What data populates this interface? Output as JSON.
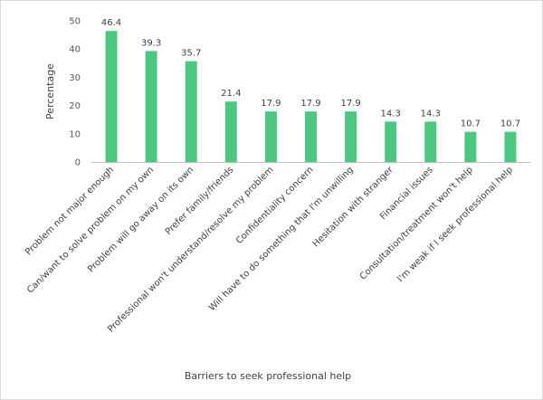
{
  "chart_data": {
    "type": "bar",
    "title": "",
    "xlabel": "Barriers to seek professional help",
    "ylabel": "Percentage",
    "ylim": [
      0,
      50
    ],
    "yticks": [
      0,
      10,
      20,
      30,
      40,
      50
    ],
    "grid": false,
    "legend": "none",
    "bar_color": "#4CC77F",
    "categories": [
      "Problem not major enough",
      "Can/want to solve problem on my own",
      "Problem will go away on its own",
      "Prefer family/friends",
      "Professional won't understand/resolve my problem",
      "Confidentiality concern",
      "Will have to do something that I'm unwilling",
      "Hesitation with stranger",
      "Financial issues",
      "Consultation/treatment won't help",
      "I'm weak if I seek professional help"
    ],
    "values": [
      46.4,
      39.3,
      35.7,
      21.4,
      17.9,
      17.9,
      17.9,
      14.3,
      14.3,
      10.7,
      10.7
    ],
    "value_labels": [
      "46.4",
      "39.3",
      "35.7",
      "21.4",
      "17.9",
      "17.9",
      "17.9",
      "14.3",
      "14.3",
      "10.7",
      "10.7"
    ]
  }
}
